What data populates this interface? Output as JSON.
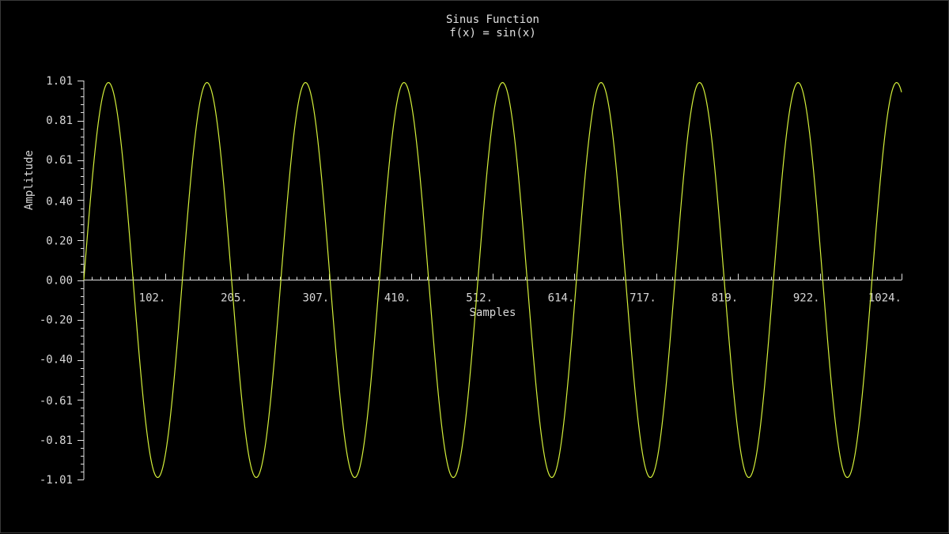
{
  "colors": {
    "background": "#000000",
    "axis": "#e0e0e0",
    "text": "#d8d8d8",
    "curve": "#d4f03a"
  },
  "chart_data": {
    "type": "line",
    "title": "Sinus Function",
    "subtitle": "f(x) = sin(x)",
    "xlabel": "Samples",
    "ylabel": "Amplitude",
    "xlim": [
      0,
      1024
    ],
    "ylim": [
      -1.01,
      1.01
    ],
    "x_tick_values": [
      102.4,
      204.8,
      307.2,
      409.6,
      512,
      614.4,
      716.8,
      819.2,
      921.6,
      1024
    ],
    "x_tick_labels": [
      "102.",
      "205.",
      "307.",
      "410.",
      "512.",
      "614.",
      "717.",
      "819.",
      "922.",
      "1024."
    ],
    "y_tick_values": [
      1.01,
      0.81,
      0.61,
      0.4,
      0.2,
      0.0,
      -0.2,
      -0.4,
      -0.61,
      -0.81,
      -1.01
    ],
    "y_tick_labels": [
      "1.01",
      "0.81",
      "0.61",
      "0.40",
      "0.20",
      "0.00",
      "-0.20",
      "-0.40",
      "-0.61",
      "-0.81",
      "-1.01"
    ],
    "series": [
      {
        "samples": 1024,
        "function": "sin",
        "cycles": 8.3,
        "amplitude": 1.0
      }
    ]
  }
}
